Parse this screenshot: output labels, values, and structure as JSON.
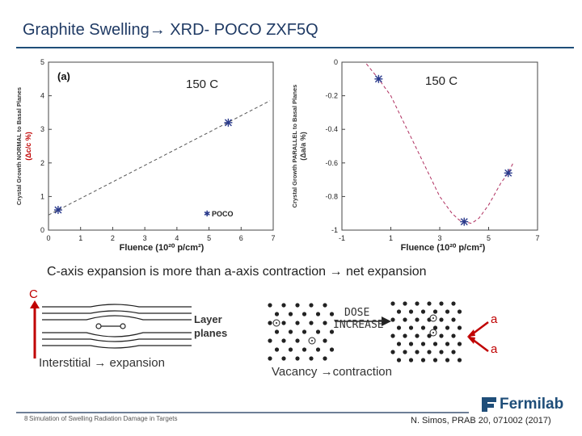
{
  "slide": {
    "title": "Graphite Swelling→ XRD- POCO ZXF5Q",
    "statement": "C-axis expansion is more than a-axis contraction → net expansion",
    "footer_text": "Simulation of Swelling Radiation Damage in Targets",
    "page_number": "8",
    "reference": "N. Simos, PRAB 20, 071002 (2017)",
    "logo_text": "Fermilab",
    "brand_color": "#1f4e79",
    "accent_color": "#c00000"
  },
  "chart_data": [
    {
      "type": "scatter",
      "panel_label": "(a)",
      "annotation": "150 C",
      "xlabel": "Fluence (10²⁰ p/cm²)",
      "ylabel_line1": "Crystal Growth NORMAL to Basal Planes",
      "ylabel_line2": "(Δc/c %)",
      "xlim": [
        0,
        7
      ],
      "ylim": [
        0,
        5
      ],
      "xticks": [
        "0",
        "1",
        "2",
        "3",
        "4",
        "5",
        "6",
        "7"
      ],
      "yticks": [
        "0",
        "1",
        "2",
        "3",
        "4",
        "5"
      ],
      "legend": "POCO",
      "legend_position": "bottom-right",
      "series": [
        {
          "name": "POCO",
          "x": [
            0.3,
            5.6
          ],
          "y": [
            0.6,
            3.2
          ],
          "marker": "asterisk",
          "color": "#2a3a8c"
        }
      ],
      "fit_line": {
        "x": [
          0,
          6.9
        ],
        "y": [
          0.45,
          3.85
        ],
        "style": "dashed"
      }
    },
    {
      "type": "scatter",
      "annotation": "150 C",
      "xlabel": "Fluence (10²⁰ p/cm²)",
      "ylabel_line1": "Crystal Growth PARALLEL to Basal Planes",
      "ylabel_line2": "(Δa/a %)",
      "xlim": [
        -1,
        7
      ],
      "ylim": [
        -1,
        0
      ],
      "xticks": [
        "-1",
        "1",
        "3",
        "5",
        "7"
      ],
      "yticks": [
        "0",
        "-0.2",
        "-0.4",
        "-0.6",
        "-0.8",
        "-1"
      ],
      "series": [
        {
          "name": "POCO",
          "x": [
            0.5,
            4.0,
            5.8
          ],
          "y": [
            -0.1,
            -0.95,
            -0.66
          ],
          "marker": "asterisk",
          "color": "#2a3a8c"
        }
      ],
      "fit_curve": {
        "x": [
          0,
          0.5,
          1.0,
          1.5,
          2.0,
          2.5,
          3.0,
          3.5,
          3.8,
          4.0,
          4.3,
          4.6,
          5.0,
          5.5,
          5.8,
          6.0
        ],
        "y": [
          -0.01,
          -0.1,
          -0.2,
          -0.35,
          -0.5,
          -0.65,
          -0.8,
          -0.9,
          -0.94,
          -0.95,
          -0.96,
          -0.93,
          -0.85,
          -0.72,
          -0.66,
          -0.6
        ],
        "style": "dashed",
        "color": "#b03060"
      }
    }
  ],
  "diagram": {
    "layer_label_1": "Layer",
    "layer_label_2": "planes",
    "caption_left": "Interstitial → expansion",
    "dose_label_1": "DOSE",
    "dose_label_2": "INCREASE",
    "caption_right": "Vacancy →contraction",
    "a_label_top": "a",
    "a_label_bottom": "a"
  }
}
